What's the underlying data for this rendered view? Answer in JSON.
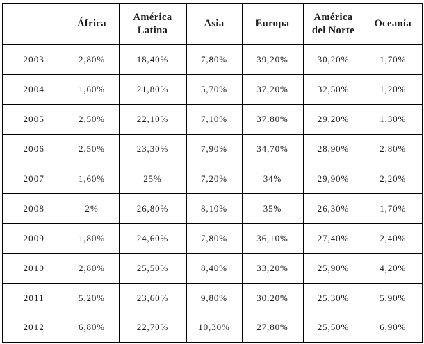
{
  "table": {
    "header": [
      "",
      "África",
      "América\nLatina",
      "Asia",
      "Europa",
      "América\ndel Norte",
      "Oceanía"
    ],
    "rows": [
      {
        "year": "2003",
        "values": [
          "2,80%",
          "18,40%",
          "7,80%",
          "39,20%",
          "30,20%",
          "1,70%"
        ]
      },
      {
        "year": "2004",
        "values": [
          "1,60%",
          "21,80%",
          "5,70%",
          "37,20%",
          "32,50%",
          "1,20%"
        ]
      },
      {
        "year": "2005",
        "values": [
          "2,50%",
          "22,10%",
          "7,10%",
          "37,80%",
          "29,20%",
          "1,30%"
        ]
      },
      {
        "year": "2006",
        "values": [
          "2,50%",
          "23,30%",
          "7,90%",
          "34,70%",
          "28,90%",
          "2,80%"
        ]
      },
      {
        "year": "2007",
        "values": [
          "1,60%",
          "25%",
          "7,20%",
          "34%",
          "29,90%",
          "2,20%"
        ]
      },
      {
        "year": "2008",
        "values": [
          "2%",
          "26,80%",
          "8,10%",
          "35%",
          "26,30%",
          "1,70%"
        ]
      },
      {
        "year": "2009",
        "values": [
          "1,80%",
          "24,60%",
          "7,80%",
          "36,10%",
          "27,40%",
          "2,40%"
        ]
      },
      {
        "year": "2010",
        "values": [
          "2,80%",
          "25,50%",
          "8,40%",
          "33,20%",
          "25,90%",
          "4,20%"
        ]
      },
      {
        "year": "2011",
        "values": [
          "5,20%",
          "23,60%",
          "9,80%",
          "30,20%",
          "25,30%",
          "5,90%"
        ]
      },
      {
        "year": "2012",
        "values": [
          "6,80%",
          "22,70%",
          "10,30%",
          "27,80%",
          "25,50%",
          "6,90%"
        ]
      }
    ]
  },
  "chart_data": {
    "type": "table",
    "title": "",
    "columns": [
      "",
      "África",
      "América Latina",
      "Asia",
      "Europa",
      "América del Norte",
      "Oceanía"
    ],
    "rows": [
      [
        "2003",
        "2,80%",
        "18,40%",
        "7,80%",
        "39,20%",
        "30,20%",
        "1,70%"
      ],
      [
        "2004",
        "1,60%",
        "21,80%",
        "5,70%",
        "37,20%",
        "32,50%",
        "1,20%"
      ],
      [
        "2005",
        "2,50%",
        "22,10%",
        "7,10%",
        "37,80%",
        "29,20%",
        "1,30%"
      ],
      [
        "2006",
        "2,50%",
        "23,30%",
        "7,90%",
        "34,70%",
        "28,90%",
        "2,80%"
      ],
      [
        "2007",
        "1,60%",
        "25%",
        "7,20%",
        "34%",
        "29,90%",
        "2,20%"
      ],
      [
        "2008",
        "2%",
        "26,80%",
        "8,10%",
        "35%",
        "26,30%",
        "1,70%"
      ],
      [
        "2009",
        "1,80%",
        "24,60%",
        "7,80%",
        "36,10%",
        "27,40%",
        "2,40%"
      ],
      [
        "2010",
        "2,80%",
        "25,50%",
        "8,40%",
        "33,20%",
        "25,90%",
        "4,20%"
      ],
      [
        "2011",
        "5,20%",
        "23,60%",
        "9,80%",
        "30,20%",
        "25,30%",
        "5,90%"
      ],
      [
        "2012",
        "6,80%",
        "22,70%",
        "10,30%",
        "27,80%",
        "25,50%",
        "6,90%"
      ]
    ],
    "series_numeric": [
      {
        "name": "África",
        "values": [
          2.8,
          1.6,
          2.5,
          2.5,
          1.6,
          2.0,
          1.8,
          2.8,
          5.2,
          6.8
        ]
      },
      {
        "name": "América Latina",
        "values": [
          18.4,
          21.8,
          22.1,
          23.3,
          25.0,
          26.8,
          24.6,
          25.5,
          23.6,
          22.7
        ]
      },
      {
        "name": "Asia",
        "values": [
          7.8,
          5.7,
          7.1,
          7.9,
          7.2,
          8.1,
          7.8,
          8.4,
          9.8,
          10.3
        ]
      },
      {
        "name": "Europa",
        "values": [
          39.2,
          37.2,
          37.8,
          34.7,
          34.0,
          35.0,
          36.1,
          33.2,
          30.2,
          27.8
        ]
      },
      {
        "name": "América del Norte",
        "values": [
          30.2,
          32.5,
          29.2,
          28.9,
          29.9,
          26.3,
          27.4,
          25.9,
          25.3,
          25.5
        ]
      },
      {
        "name": "Oceanía",
        "values": [
          1.7,
          1.2,
          1.3,
          2.8,
          2.2,
          1.7,
          2.4,
          4.2,
          5.9,
          6.9
        ]
      }
    ],
    "x": [
      2003,
      2004,
      2005,
      2006,
      2007,
      2008,
      2009,
      2010,
      2011,
      2012
    ],
    "value_format": "percent, Spanish decimal comma",
    "legend_position": "none",
    "grid": true
  },
  "colors": {
    "background": "#ffffff",
    "border": "#000000",
    "text": "#1c1c1c"
  }
}
